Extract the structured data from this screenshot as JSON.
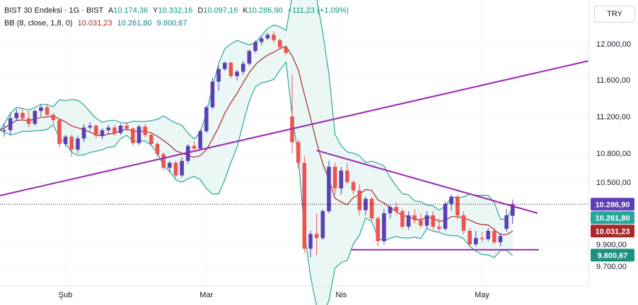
{
  "legend": {
    "symbol": "BIST 30 Endeksi · 1G · BIST",
    "open_label": "A",
    "open": "10.174,36",
    "high_label": "Y",
    "high": "10.332,16",
    "low_label": "D",
    "low": "10.097,16",
    "close_label": "K",
    "close": "10.286,90",
    "change": "+111,23 (+1,09%)",
    "bb_name": "BB (8, close, 1,8, 0)",
    "bb_basis": "10.031,23",
    "bb_upper": "10.261,80",
    "bb_lower": "9.800,67"
  },
  "currency": "TRY",
  "colors": {
    "up": "#5b3fb5",
    "down": "#ef5350",
    "basis": "#a52a2a",
    "band": "#26a69a",
    "band_fill": "#e3f4f1",
    "trend": "#9c27b0"
  },
  "chart_data": {
    "type": "candlestick",
    "y_ticks": [
      "12.000,00",
      "11.600,00",
      "11.200,00",
      "10.800,00",
      "10.500,00",
      "9.900,00",
      "9.700,00"
    ],
    "y_tick_values": [
      12000,
      11600,
      11200,
      10800,
      10500,
      9900,
      9700
    ],
    "x_ticks": [
      "Şub",
      "Mar",
      "Nis",
      "May"
    ],
    "price_tags": [
      {
        "label": "10.286,90",
        "value": 10286.9,
        "color": "#5b3fb5"
      },
      {
        "label": "10.261,80",
        "value": 10261.8,
        "color": "#26a69a"
      },
      {
        "label": "10.031,23",
        "value": 10031.23,
        "color": "#a52a2a"
      },
      {
        "label": "9.800,67",
        "value": 9800.67,
        "color": "#1f8f80"
      }
    ],
    "candles": [
      [
        11040,
        11120,
        10980,
        11050
      ],
      [
        11050,
        11240,
        11000,
        11180
      ],
      [
        11180,
        11280,
        11150,
        11240
      ],
      [
        11240,
        11290,
        11160,
        11180
      ],
      [
        11180,
        11260,
        11080,
        11120
      ],
      [
        11120,
        11280,
        11100,
        11260
      ],
      [
        11260,
        11330,
        11200,
        11300
      ],
      [
        11300,
        11340,
        11200,
        11220
      ],
      [
        11220,
        11240,
        11120,
        11160
      ],
      [
        11160,
        11180,
        10860,
        10900
      ],
      [
        10900,
        11000,
        10870,
        10980
      ],
      [
        10980,
        11000,
        10760,
        10840
      ],
      [
        10840,
        10990,
        10800,
        10960
      ],
      [
        10960,
        11120,
        10920,
        11080
      ],
      [
        11080,
        11140,
        11050,
        11100
      ],
      [
        11100,
        11110,
        10960,
        10990
      ],
      [
        10990,
        11070,
        10950,
        11050
      ],
      [
        11050,
        11110,
        11000,
        11080
      ],
      [
        11080,
        11110,
        10990,
        11020
      ],
      [
        11020,
        11120,
        11000,
        11100
      ],
      [
        11100,
        11140,
        11040,
        11070
      ],
      [
        11070,
        11080,
        10880,
        10910
      ],
      [
        10910,
        11110,
        10890,
        11090
      ],
      [
        11090,
        11120,
        10970,
        11000
      ],
      [
        11000,
        11010,
        10880,
        10900
      ],
      [
        10900,
        10920,
        10760,
        10790
      ],
      [
        10790,
        10810,
        10620,
        10650
      ],
      [
        10650,
        10720,
        10600,
        10700
      ],
      [
        10700,
        10720,
        10540,
        10570
      ],
      [
        10570,
        10760,
        10550,
        10720
      ],
      [
        10720,
        10900,
        10690,
        10880
      ],
      [
        10880,
        10930,
        10830,
        10850
      ],
      [
        10850,
        11060,
        10830,
        11040
      ],
      [
        11040,
        11320,
        11020,
        11300
      ],
      [
        11300,
        11620,
        11280,
        11580
      ],
      [
        11580,
        11750,
        11480,
        11720
      ],
      [
        11720,
        11800,
        11700,
        11790
      ],
      [
        11790,
        11800,
        11620,
        11640
      ],
      [
        11640,
        11710,
        11590,
        11690
      ],
      [
        11690,
        11810,
        11650,
        11780
      ],
      [
        11780,
        11940,
        11760,
        11920
      ],
      [
        11920,
        12040,
        11900,
        12020
      ],
      [
        12020,
        12090,
        11980,
        12060
      ],
      [
        12060,
        12120,
        12040,
        12100
      ],
      [
        12100,
        12140,
        12010,
        12040
      ],
      [
        12040,
        12060,
        11950,
        11960
      ],
      [
        11960,
        11980,
        11880,
        11900
      ],
      [
        11200,
        11660,
        10800,
        10920
      ],
      [
        10920,
        10950,
        10640,
        10700
      ],
      [
        10700,
        10770,
        9820,
        9860
      ],
      [
        9860,
        10030,
        9780,
        10000
      ],
      [
        10000,
        10200,
        9800,
        9960
      ],
      [
        9960,
        10240,
        9940,
        10220
      ],
      [
        10220,
        10720,
        10200,
        10660
      ],
      [
        10660,
        10700,
        10380,
        10440
      ],
      [
        10440,
        10660,
        10380,
        10620
      ],
      [
        10620,
        10700,
        10480,
        10500
      ],
      [
        10500,
        10520,
        10380,
        10420
      ],
      [
        10420,
        10480,
        10180,
        10230
      ],
      [
        10230,
        10360,
        10180,
        10340
      ],
      [
        10340,
        10360,
        10120,
        10150
      ],
      [
        10150,
        10170,
        9880,
        9930
      ],
      [
        9930,
        10240,
        9900,
        10200
      ],
      [
        10200,
        10280,
        10150,
        10260
      ],
      [
        10260,
        10300,
        10180,
        10220
      ],
      [
        10220,
        10240,
        10050,
        10070
      ],
      [
        10070,
        10220,
        10040,
        10180
      ],
      [
        10180,
        10240,
        10100,
        10130
      ],
      [
        10130,
        10200,
        10060,
        10080
      ],
      [
        10080,
        10220,
        10050,
        10180
      ],
      [
        10180,
        10220,
        10040,
        10070
      ],
      [
        10070,
        10150,
        10020,
        10050
      ],
      [
        10050,
        10310,
        10030,
        10290
      ],
      [
        10290,
        10380,
        10220,
        10360
      ],
      [
        10360,
        10380,
        10140,
        10180
      ],
      [
        10180,
        10220,
        10000,
        10030
      ],
      [
        10030,
        10060,
        9880,
        9900
      ],
      [
        9900,
        10030,
        9880,
        9960
      ],
      [
        9960,
        10020,
        9920,
        9950
      ],
      [
        9950,
        10060,
        9930,
        10030
      ],
      [
        10030,
        10060,
        9900,
        9920
      ],
      [
        9920,
        10010,
        9880,
        9980
      ],
      [
        10050,
        10240,
        10020,
        10180
      ],
      [
        10174.36,
        10332.16,
        10097.16,
        10286.9
      ]
    ]
  }
}
